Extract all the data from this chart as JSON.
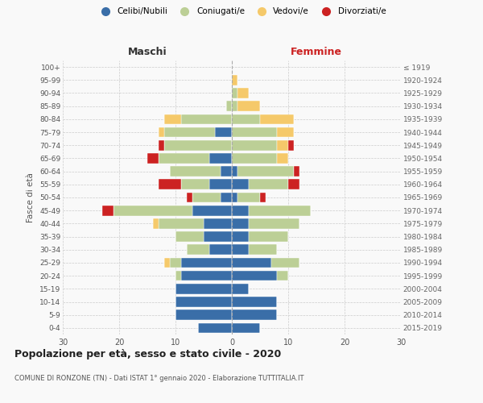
{
  "age_groups": [
    "100+",
    "95-99",
    "90-94",
    "85-89",
    "80-84",
    "75-79",
    "70-74",
    "65-69",
    "60-64",
    "55-59",
    "50-54",
    "45-49",
    "40-44",
    "35-39",
    "30-34",
    "25-29",
    "20-24",
    "15-19",
    "10-14",
    "5-9",
    "0-4"
  ],
  "birth_years": [
    "≤ 1919",
    "1920-1924",
    "1925-1929",
    "1930-1934",
    "1935-1939",
    "1940-1944",
    "1945-1949",
    "1950-1954",
    "1955-1959",
    "1960-1964",
    "1965-1969",
    "1970-1974",
    "1975-1979",
    "1980-1984",
    "1985-1989",
    "1990-1994",
    "1995-1999",
    "2000-2004",
    "2005-2009",
    "2010-2014",
    "2015-2019"
  ],
  "maschi": {
    "celibi": [
      0,
      0,
      0,
      0,
      0,
      3,
      0,
      4,
      2,
      4,
      2,
      7,
      5,
      5,
      4,
      9,
      9,
      10,
      10,
      10,
      6
    ],
    "coniugati": [
      0,
      0,
      0,
      1,
      9,
      9,
      12,
      9,
      9,
      5,
      5,
      14,
      8,
      5,
      4,
      2,
      1,
      0,
      0,
      0,
      0
    ],
    "vedovi": [
      0,
      0,
      0,
      0,
      3,
      1,
      0,
      0,
      0,
      0,
      0,
      0,
      1,
      0,
      0,
      1,
      0,
      0,
      0,
      0,
      0
    ],
    "divorziati": [
      0,
      0,
      0,
      0,
      0,
      0,
      1,
      2,
      0,
      4,
      1,
      2,
      0,
      0,
      0,
      0,
      0,
      0,
      0,
      0,
      0
    ]
  },
  "femmine": {
    "nubili": [
      0,
      0,
      0,
      0,
      0,
      0,
      0,
      0,
      1,
      3,
      1,
      3,
      3,
      3,
      3,
      7,
      8,
      3,
      8,
      8,
      5
    ],
    "coniugate": [
      0,
      0,
      1,
      1,
      5,
      8,
      8,
      8,
      10,
      7,
      4,
      11,
      9,
      7,
      5,
      5,
      2,
      0,
      0,
      0,
      0
    ],
    "vedove": [
      0,
      1,
      2,
      4,
      6,
      3,
      2,
      2,
      0,
      0,
      0,
      0,
      0,
      0,
      0,
      0,
      0,
      0,
      0,
      0,
      0
    ],
    "divorziate": [
      0,
      0,
      0,
      0,
      0,
      0,
      1,
      0,
      1,
      2,
      1,
      0,
      0,
      0,
      0,
      0,
      0,
      0,
      0,
      0,
      0
    ]
  },
  "colors": {
    "celibi": "#3a6ea8",
    "coniugati": "#bccf96",
    "vedovi": "#f5c96a",
    "divorziati": "#cc2222"
  },
  "xlim": 30,
  "title": "Popolazione per età, sesso e stato civile - 2020",
  "subtitle": "COMUNE DI RONZONE (TN) - Dati ISTAT 1° gennaio 2020 - Elaborazione TUTTITALIA.IT",
  "ylabel_left": "Fasce di età",
  "xlabel_left": "Maschi",
  "xlabel_right": "Femmine",
  "legend_labels": [
    "Celibi/Nubili",
    "Coniugati/e",
    "Vedovi/e",
    "Divorziati/e"
  ],
  "background_color": "#f9f9f9"
}
